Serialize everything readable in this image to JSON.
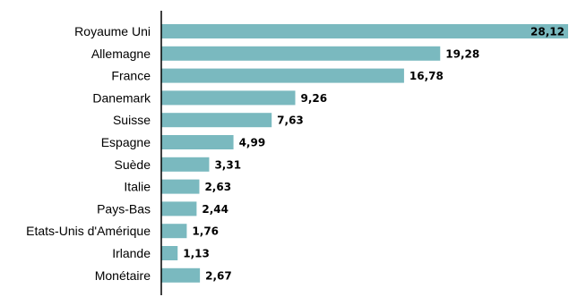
{
  "chart_data": {
    "type": "bar",
    "orientation": "horizontal",
    "categories": [
      "Royaume Uni",
      "Allemagne",
      "France",
      "Danemark",
      "Suisse",
      "Espagne",
      "Suède",
      "Italie",
      "Pays-Bas",
      "Etats-Unis d'Amérique",
      "Irlande",
      "Monétaire"
    ],
    "values": [
      28.12,
      19.28,
      16.78,
      9.26,
      7.63,
      4.99,
      3.31,
      2.63,
      2.44,
      1.76,
      1.13,
      2.67
    ],
    "value_labels": [
      "28,12",
      "19,28",
      "16,78",
      "9,26",
      "7,63",
      "4,99",
      "3,31",
      "2,63",
      "2,44",
      "1,76",
      "1,13",
      "2,67"
    ],
    "title": "",
    "xlabel": "",
    "ylabel": "",
    "xlim": [
      0,
      28.12
    ],
    "grid": false,
    "legend": "none",
    "colors": {
      "bar": "#7ab9bf",
      "axis": "#000000"
    }
  }
}
